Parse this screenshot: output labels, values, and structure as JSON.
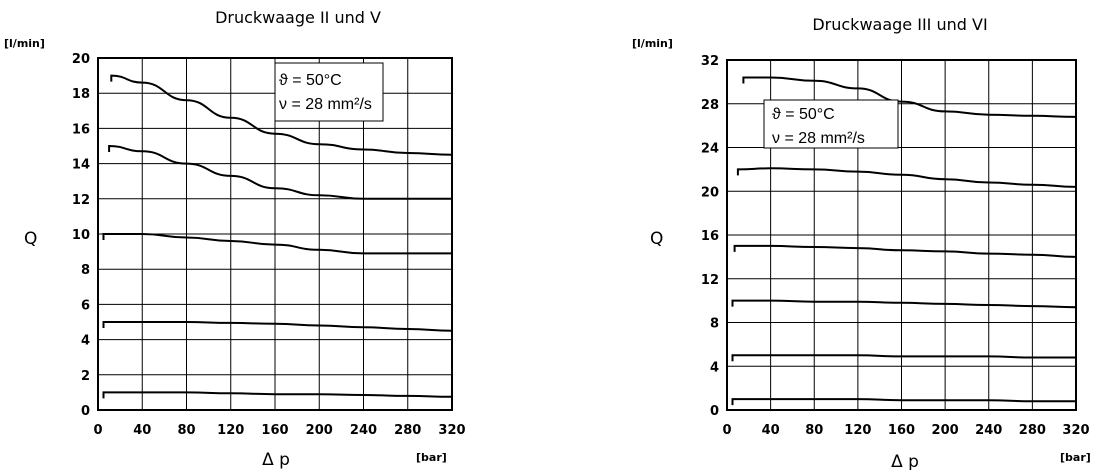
{
  "chart_data": [
    {
      "type": "line",
      "title": "Druckwaage II und V",
      "ylabel": "Q",
      "yunit": "[l/min]",
      "xlabel": "Δ p",
      "xunit": "[bar]",
      "xlim": [
        0,
        320
      ],
      "ylim": [
        0,
        20
      ],
      "xticks": [
        0,
        40,
        80,
        120,
        160,
        200,
        240,
        280,
        320
      ],
      "yticks": [
        0,
        2,
        4,
        6,
        8,
        10,
        12,
        14,
        16,
        18,
        20
      ],
      "grid": true,
      "annotations": [
        "ϑ = 50°C",
        "ν = 28 mm²/s"
      ],
      "series": [
        {
          "x": [
            12,
            40,
            80,
            120,
            160,
            200,
            240,
            280,
            320
          ],
          "values": [
            19.0,
            18.6,
            17.6,
            16.6,
            15.7,
            15.1,
            14.8,
            14.6,
            14.5
          ]
        },
        {
          "x": [
            10,
            40,
            80,
            120,
            160,
            200,
            240,
            280,
            320
          ],
          "values": [
            15.0,
            14.7,
            14.0,
            13.3,
            12.6,
            12.2,
            12.0,
            12.0,
            12.0
          ]
        },
        {
          "x": [
            5,
            40,
            80,
            120,
            160,
            200,
            240,
            280,
            320
          ],
          "values": [
            10.0,
            10.0,
            9.8,
            9.6,
            9.4,
            9.1,
            8.9,
            8.9,
            8.9
          ]
        },
        {
          "x": [
            5,
            40,
            80,
            120,
            160,
            200,
            240,
            280,
            320
          ],
          "values": [
            5.0,
            5.0,
            5.0,
            4.95,
            4.9,
            4.8,
            4.7,
            4.6,
            4.5
          ]
        },
        {
          "x": [
            5,
            40,
            80,
            120,
            160,
            200,
            240,
            280,
            320
          ],
          "values": [
            1.0,
            1.0,
            1.0,
            0.95,
            0.9,
            0.9,
            0.85,
            0.8,
            0.75
          ]
        }
      ]
    },
    {
      "type": "line",
      "title": "Druckwaage III und VI",
      "ylabel": "Q",
      "yunit": "[l/min]",
      "xlabel": "Δ p",
      "xunit": "[bar]",
      "xlim": [
        0,
        320
      ],
      "ylim": [
        0,
        32
      ],
      "xticks": [
        0,
        40,
        80,
        120,
        160,
        200,
        240,
        280,
        320
      ],
      "yticks": [
        0,
        4,
        8,
        12,
        16,
        20,
        24,
        28,
        32
      ],
      "grid": true,
      "annotations": [
        "ϑ = 50°C",
        "ν = 28 mm²/s"
      ],
      "series": [
        {
          "x": [
            15,
            40,
            80,
            120,
            160,
            200,
            240,
            280,
            320
          ],
          "values": [
            30.4,
            30.4,
            30.1,
            29.4,
            28.2,
            27.3,
            27.0,
            26.9,
            26.8
          ]
        },
        {
          "x": [
            10,
            40,
            80,
            120,
            160,
            200,
            240,
            280,
            320
          ],
          "values": [
            22.0,
            22.1,
            22.0,
            21.8,
            21.5,
            21.1,
            20.8,
            20.6,
            20.4
          ]
        },
        {
          "x": [
            7,
            40,
            80,
            120,
            160,
            200,
            240,
            280,
            320
          ],
          "values": [
            15.0,
            15.0,
            14.9,
            14.8,
            14.6,
            14.5,
            14.3,
            14.2,
            14.0
          ]
        },
        {
          "x": [
            5,
            40,
            80,
            120,
            160,
            200,
            240,
            280,
            320
          ],
          "values": [
            10.0,
            10.0,
            9.9,
            9.9,
            9.8,
            9.7,
            9.6,
            9.5,
            9.4
          ]
        },
        {
          "x": [
            5,
            40,
            80,
            120,
            160,
            200,
            240,
            280,
            320
          ],
          "values": [
            5.0,
            5.0,
            5.0,
            5.0,
            4.9,
            4.9,
            4.9,
            4.8,
            4.8
          ]
        },
        {
          "x": [
            5,
            40,
            80,
            120,
            160,
            200,
            240,
            280,
            320
          ],
          "values": [
            1.0,
            1.0,
            1.0,
            1.0,
            0.9,
            0.9,
            0.9,
            0.8,
            0.8
          ]
        }
      ]
    }
  ]
}
